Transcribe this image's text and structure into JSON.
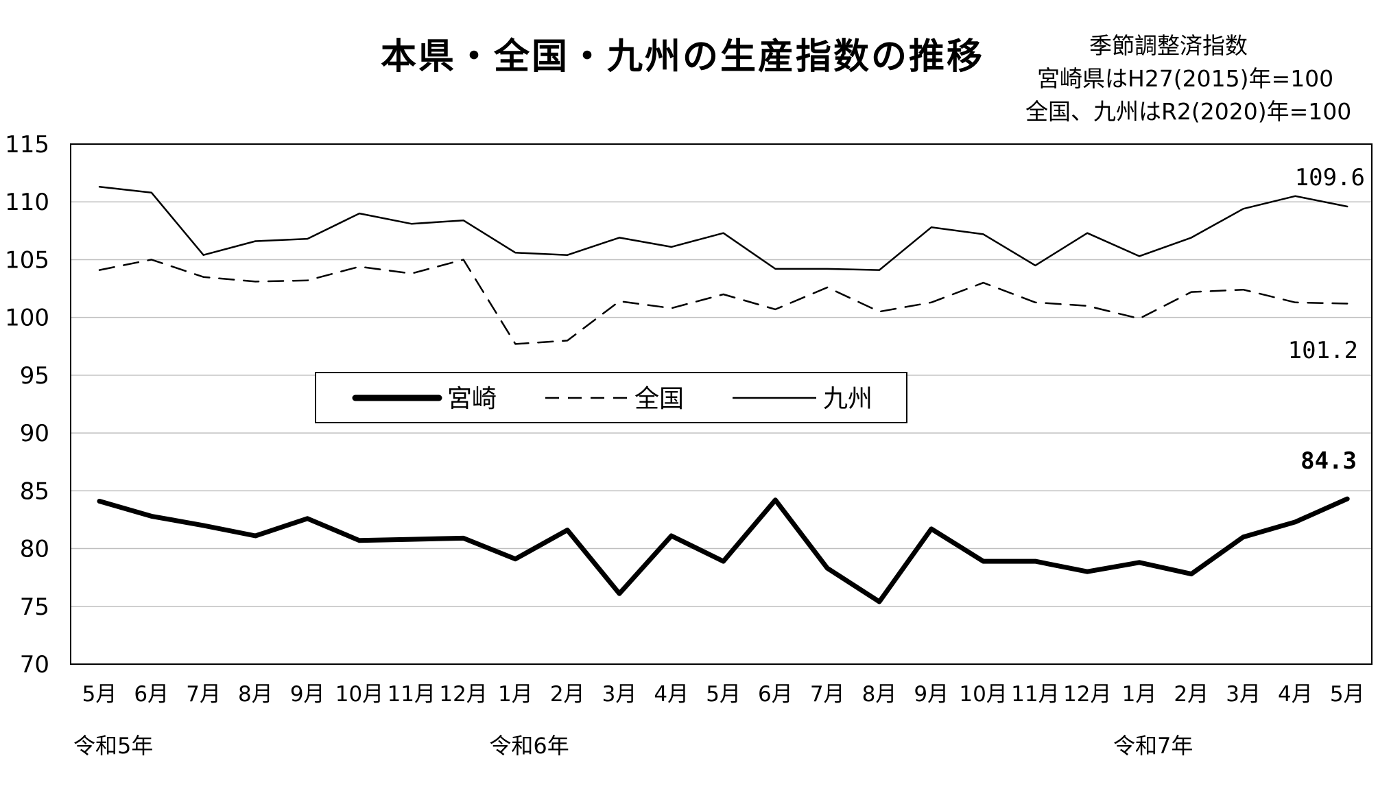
{
  "title": "本県・全国・九州の生産指数の推移",
  "notes": {
    "line1": "季節調整済指数",
    "line2": "宮崎県はH27(2015)年=100",
    "line3": "全国、九州はR2(2020)年=100"
  },
  "chart_data": {
    "type": "line",
    "title": "本県・全国・九州の生産指数の推移",
    "xlabel": "",
    "ylabel": "",
    "ylim": [
      70,
      115
    ],
    "yticks": [
      70,
      75,
      80,
      85,
      90,
      95,
      100,
      105,
      110,
      115
    ],
    "grid": true,
    "legend_placement": "center-left",
    "categories": [
      "5月",
      "6月",
      "7月",
      "8月",
      "9月",
      "10月",
      "11月",
      "12月",
      "1月",
      "2月",
      "3月",
      "4月",
      "5月",
      "6月",
      "7月",
      "8月",
      "9月",
      "10月",
      "11月",
      "12月",
      "1月",
      "2月",
      "3月",
      "4月",
      "5月"
    ],
    "year_labels": [
      {
        "index": 0,
        "label": "令和5年"
      },
      {
        "index": 8,
        "label": "令和6年"
      },
      {
        "index": 20,
        "label": "令和7年"
      }
    ],
    "series": [
      {
        "name": "宮崎",
        "style": "thick-solid",
        "color": "#000000",
        "values": [
          84.1,
          82.8,
          82.0,
          81.1,
          82.6,
          80.7,
          80.8,
          80.9,
          79.1,
          81.6,
          76.1,
          81.1,
          78.9,
          84.2,
          78.3,
          75.4,
          81.7,
          78.9,
          78.9,
          78.0,
          78.8,
          77.8,
          81.0,
          82.3,
          84.3
        ],
        "end_label": "84.3"
      },
      {
        "name": "全国",
        "style": "dashed",
        "color": "#000000",
        "values": [
          104.1,
          105.0,
          103.5,
          103.1,
          103.2,
          104.4,
          103.8,
          105.0,
          97.7,
          98.0,
          101.4,
          100.8,
          102.0,
          100.7,
          102.6,
          100.5,
          101.3,
          103.0,
          101.3,
          101.0,
          99.9,
          102.2,
          102.4,
          101.3,
          101.2
        ],
        "end_label": "101.2"
      },
      {
        "name": "九州",
        "style": "thin-solid",
        "color": "#000000",
        "values": [
          111.3,
          110.8,
          105.4,
          106.6,
          106.8,
          109.0,
          108.1,
          108.4,
          105.6,
          105.4,
          106.9,
          106.1,
          107.3,
          104.2,
          104.2,
          104.1,
          107.8,
          107.2,
          104.5,
          107.3,
          105.3,
          106.9,
          109.4,
          110.5,
          109.6
        ],
        "end_label": "109.6"
      }
    ]
  }
}
